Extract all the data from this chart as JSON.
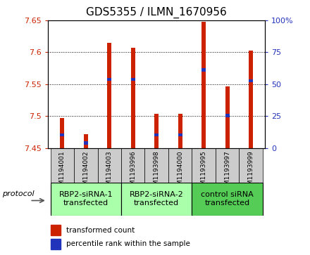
{
  "title": "GDS5355 / ILMN_1670956",
  "samples": [
    "GSM1194001",
    "GSM1194002",
    "GSM1194003",
    "GSM1193996",
    "GSM1193998",
    "GSM1194000",
    "GSM1193995",
    "GSM1193997",
    "GSM1193999"
  ],
  "red_values": [
    7.497,
    7.472,
    7.615,
    7.607,
    7.503,
    7.504,
    7.648,
    7.547,
    7.603
  ],
  "blue_values": [
    7.468,
    7.455,
    7.555,
    7.555,
    7.468,
    7.468,
    7.57,
    7.498,
    7.553
  ],
  "ymin": 7.45,
  "ymax": 7.65,
  "y_ticks": [
    7.45,
    7.5,
    7.55,
    7.6,
    7.65
  ],
  "y2_ticks": [
    0,
    25,
    50,
    75,
    100
  ],
  "y2_tick_labels": [
    "0",
    "25",
    "50",
    "75",
    "100%"
  ],
  "group_starts": [
    0,
    3,
    6
  ],
  "group_ends": [
    3,
    6,
    9
  ],
  "group_labels": [
    "RBP2-siRNA-1\ntransfected",
    "RBP2-siRNA-2\ntransfected",
    "control siRNA\ntransfected"
  ],
  "group_colors": [
    "#aaffaa",
    "#aaffaa",
    "#55cc55"
  ],
  "protocol_label": "protocol",
  "legend_red": "transformed count",
  "legend_blue": "percentile rank within the sample",
  "bar_width": 0.18,
  "sample_bg": "#cccccc",
  "plot_bg": "#ffffff",
  "red_color": "#cc2200",
  "blue_color": "#2233bb",
  "title_fontsize": 11,
  "tick_fontsize": 8,
  "group_label_fontsize": 8,
  "blue_bar_height": 0.005
}
